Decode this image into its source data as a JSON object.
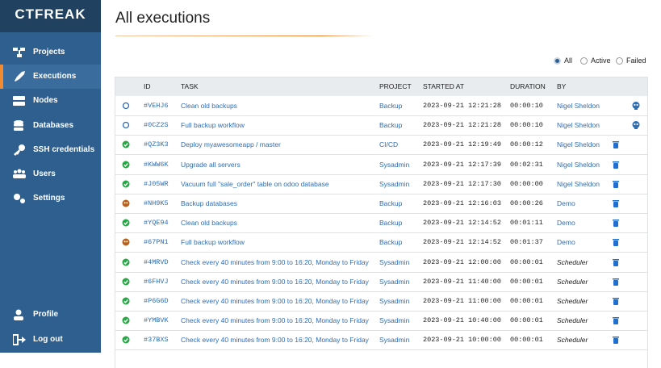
{
  "logo": "CTFREAK",
  "nav": [
    "Projects",
    "Executions",
    "Nodes",
    "Databases",
    "SSH credentials",
    "Users",
    "Settings"
  ],
  "nav_bottom": [
    "Profile",
    "Log out"
  ],
  "title": "All executions",
  "filters": [
    "All",
    "Active",
    "Failed"
  ],
  "table": {
    "headers": [
      "ID",
      "TASK",
      "PROJECT",
      "STARTED AT",
      "DURATION",
      "BY"
    ],
    "rows": [
      [
        "#VEHJ6",
        "Clean old backups",
        "Backup",
        "2023-09-21 12:21:28",
        "00:00:10",
        "Nigel Sheldon"
      ],
      [
        "#0CZ2S",
        "Full backup workflow",
        "Backup",
        "2023-09-21 12:21:28",
        "00:00:10",
        "Nigel Sheldon"
      ],
      [
        "#QZ3K3",
        "Deploy myawesomeapp / master",
        "CI/CD",
        "2023-09-21 12:19:49",
        "00:00:12",
        "Nigel Sheldon"
      ],
      [
        "#KWW6K",
        "Upgrade all servers",
        "Sysadmin",
        "2023-09-21 12:17:39",
        "00:02:31",
        "Nigel Sheldon"
      ],
      [
        "#J05WR",
        "Vacuum full \"sale_order\" table on odoo database",
        "Sysadmin",
        "2023-09-21 12:17:30",
        "00:00:00",
        "Nigel Sheldon"
      ],
      [
        "#NH9K5",
        "Backup databases",
        "Backup",
        "2023-09-21 12:16:03",
        "00:00:26",
        "Demo"
      ],
      [
        "#YQE94",
        "Clean old backups",
        "Backup",
        "2023-09-21 12:14:52",
        "00:01:11",
        "Demo"
      ],
      [
        "#67PN1",
        "Full backup workflow",
        "Backup",
        "2023-09-21 12:14:52",
        "00:01:37",
        "Demo"
      ],
      [
        "#4MRVD",
        "Check every 40 minutes from 9:00 to 16:20, Monday to Friday",
        "Sysadmin",
        "2023-09-21 12:00:00",
        "00:00:01",
        "Scheduler"
      ],
      [
        "#6FHVJ",
        "Check every 40 minutes from 9:00 to 16:20, Monday to Friday",
        "Sysadmin",
        "2023-09-21 11:40:00",
        "00:00:01",
        "Scheduler"
      ],
      [
        "#P6G6D",
        "Check every 40 minutes from 9:00 to 16:20, Monday to Friday",
        "Sysadmin",
        "2023-09-21 11:00:00",
        "00:00:01",
        "Scheduler"
      ],
      [
        "#YMBVK",
        "Check every 40 minutes from 9:00 to 16:20, Monday to Friday",
        "Sysadmin",
        "2023-09-21 10:40:00",
        "00:00:01",
        "Scheduler"
      ],
      [
        "#37BXS",
        "Check every 40 minutes from 9:00 to 16:20, Monday to Friday",
        "Sysadmin",
        "2023-09-21 10:00:00",
        "00:00:01",
        "Scheduler"
      ]
    ]
  }
}
